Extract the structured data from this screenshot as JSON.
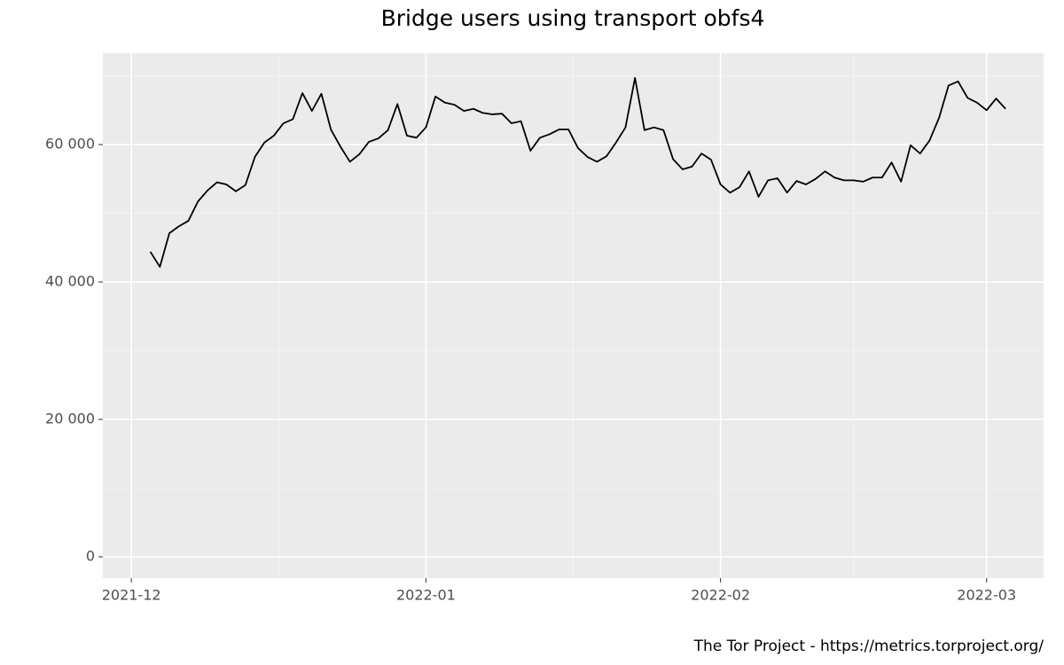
{
  "chart_data": {
    "type": "line",
    "title": "Bridge users using transport obfs4",
    "caption": "The Tor Project - https://metrics.torproject.org/",
    "x": [
      "2021-12-03",
      "2021-12-04",
      "2021-12-05",
      "2021-12-06",
      "2021-12-07",
      "2021-12-08",
      "2021-12-09",
      "2021-12-10",
      "2021-12-11",
      "2021-12-12",
      "2021-12-13",
      "2021-12-14",
      "2021-12-15",
      "2021-12-16",
      "2021-12-17",
      "2021-12-18",
      "2021-12-19",
      "2021-12-20",
      "2021-12-21",
      "2021-12-22",
      "2021-12-23",
      "2021-12-24",
      "2021-12-25",
      "2021-12-26",
      "2021-12-27",
      "2021-12-28",
      "2021-12-29",
      "2021-12-30",
      "2021-12-31",
      "2022-01-01",
      "2022-01-02",
      "2022-01-03",
      "2022-01-04",
      "2022-01-05",
      "2022-01-06",
      "2022-01-07",
      "2022-01-08",
      "2022-01-09",
      "2022-01-10",
      "2022-01-11",
      "2022-01-12",
      "2022-01-13",
      "2022-01-14",
      "2022-01-15",
      "2022-01-16",
      "2022-01-17",
      "2022-01-18",
      "2022-01-19",
      "2022-01-20",
      "2022-01-21",
      "2022-01-22",
      "2022-01-23",
      "2022-01-24",
      "2022-01-25",
      "2022-01-26",
      "2022-01-27",
      "2022-01-28",
      "2022-01-29",
      "2022-01-30",
      "2022-01-31",
      "2022-02-01",
      "2022-02-02",
      "2022-02-03",
      "2022-02-04",
      "2022-02-05",
      "2022-02-06",
      "2022-02-07",
      "2022-02-08",
      "2022-02-09",
      "2022-02-10",
      "2022-02-11",
      "2022-02-12",
      "2022-02-13",
      "2022-02-14",
      "2022-02-15",
      "2022-02-16",
      "2022-02-17",
      "2022-02-18",
      "2022-02-19",
      "2022-02-20",
      "2022-02-21",
      "2022-02-22",
      "2022-02-23",
      "2022-02-24",
      "2022-02-25",
      "2022-02-26",
      "2022-02-27",
      "2022-02-28",
      "2022-03-01",
      "2022-03-02",
      "2022-03-03"
    ],
    "series": [
      {
        "name": "obfs4",
        "color": "#000000",
        "values": [
          44400,
          42200,
          47100,
          48100,
          48900,
          51700,
          53300,
          54500,
          54200,
          53200,
          54100,
          58200,
          60300,
          61300,
          63100,
          63700,
          67500,
          64900,
          67400,
          62200,
          59700,
          57500,
          58600,
          60400,
          60900,
          62100,
          65900,
          61300,
          61000,
          62500,
          67000,
          66100,
          65800,
          64900,
          65200,
          64600,
          64400,
          64500,
          63100,
          63400,
          59100,
          61000,
          61500,
          62200,
          62200,
          59500,
          58200,
          57500,
          58300,
          60300,
          62500,
          69700,
          62100,
          62500,
          62100,
          57900,
          56400,
          56800,
          58700,
          57800,
          54200,
          53000,
          53800,
          56100,
          52400,
          54800,
          55100,
          53000,
          54700,
          54200,
          55000,
          56100,
          55200,
          54800,
          54800,
          54600,
          55200,
          55200,
          57400,
          54600,
          59900,
          58700,
          60600,
          63900,
          68600,
          69200,
          66800,
          66100,
          65000,
          66700,
          65200
        ]
      }
    ],
    "xlim": [
      "2021-11-28",
      "2022-03-07"
    ],
    "xticks": [
      {
        "value": "2021-12-01",
        "label": "2021-12"
      },
      {
        "value": "2022-01-01",
        "label": "2022-01"
      },
      {
        "value": "2022-02-01",
        "label": "2022-02"
      },
      {
        "value": "2022-03-01",
        "label": "2022-03"
      }
    ],
    "ylim": [
      -3100,
      73300
    ],
    "yticks": [
      0,
      {
        "value": 20000,
        "label": "20 000"
      },
      {
        "value": 40000,
        "label": "40 000"
      },
      {
        "value": 60000,
        "label": "60 000"
      }
    ],
    "grid": true
  }
}
